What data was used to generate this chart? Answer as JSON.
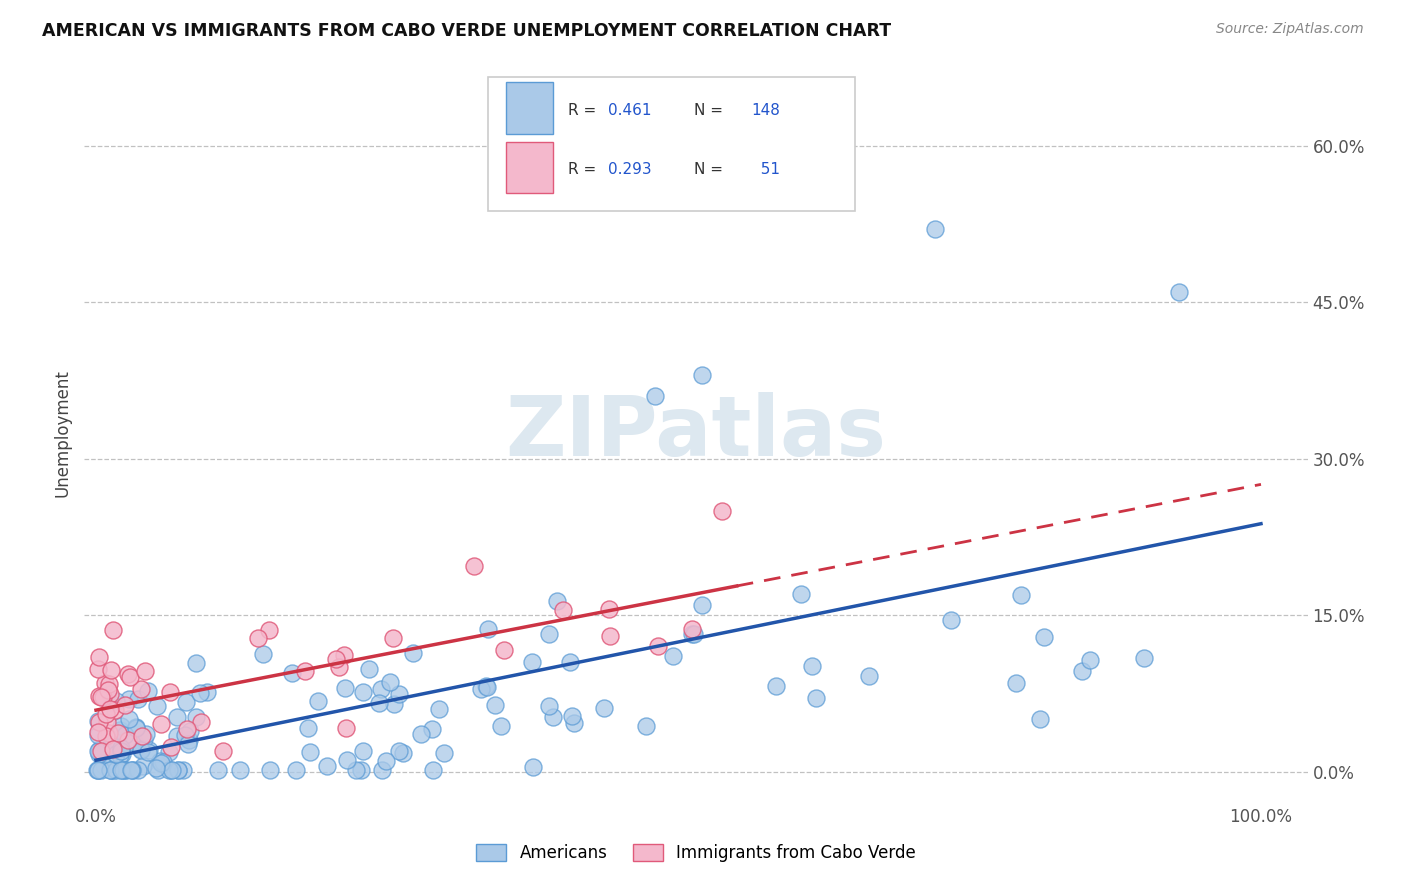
{
  "title": "AMERICAN VS IMMIGRANTS FROM CABO VERDE UNEMPLOYMENT CORRELATION CHART",
  "source": "Source: ZipAtlas.com",
  "ylabel": "Unemployment",
  "american_color": "#aac9e8",
  "american_edge_color": "#5b9bd5",
  "immigrant_color": "#f4b8cc",
  "immigrant_edge_color": "#e05a7a",
  "american_line_color": "#2255aa",
  "immigrant_line_color": "#cc3344",
  "R_american": 0.461,
  "N_american": 148,
  "R_immigrant": 0.293,
  "N_immigrant": 51,
  "watermark": "ZIPatlas",
  "legend_labels": [
    "Americans",
    "Immigrants from Cabo Verde"
  ],
  "yticks": [
    0.0,
    0.15,
    0.3,
    0.45,
    0.6
  ],
  "xlim": [
    -0.01,
    1.04
  ],
  "ylim": [
    -0.03,
    0.68
  ]
}
